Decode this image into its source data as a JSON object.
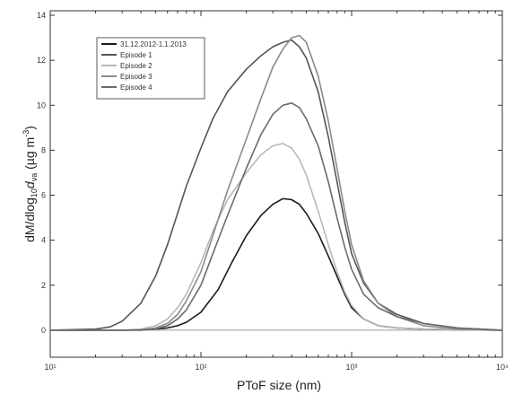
{
  "chart_data": {
    "type": "line",
    "title": "",
    "xlabel": "PToF size (nm)",
    "ylabel_main": "dM/dlog",
    "ylabel_sub1": "10",
    "ylabel_mid": "d",
    "ylabel_sub2": "va",
    "ylabel_unit": " (µg m",
    "ylabel_sup": "-3",
    "ylabel_close": ")",
    "xscale": "log",
    "xlim": [
      10,
      10000
    ],
    "ylim": [
      -1.2,
      14.2
    ],
    "yticks": [
      "0",
      "2",
      "4",
      "6",
      "8",
      "10",
      "12",
      "14"
    ],
    "xticks_major": [
      "10¹",
      "10²",
      "10³",
      "10⁴"
    ],
    "legend_position": "top-left",
    "grid": false,
    "series": [
      {
        "name": "31.12.2012-1.1.2013",
        "color": "#1a1a1a",
        "x": [
          10,
          20,
          30,
          40,
          50,
          60,
          70,
          80,
          100,
          130,
          160,
          200,
          250,
          300,
          350,
          400,
          450,
          500,
          600,
          700,
          800,
          900,
          1000,
          1200,
          1500,
          2000,
          3000,
          5000,
          10000
        ],
        "y": [
          0,
          0,
          0,
          0.02,
          0.05,
          0.1,
          0.2,
          0.35,
          0.8,
          1.8,
          3.0,
          4.2,
          5.1,
          5.6,
          5.85,
          5.8,
          5.6,
          5.2,
          4.3,
          3.3,
          2.4,
          1.6,
          1.0,
          0.5,
          0.2,
          0.1,
          0.05,
          0.02,
          0
        ]
      },
      {
        "name": "Episode 1",
        "color": "#555555",
        "x": [
          10,
          20,
          25,
          30,
          40,
          50,
          60,
          70,
          80,
          100,
          120,
          150,
          200,
          250,
          300,
          350,
          400,
          450,
          500,
          600,
          700,
          800,
          900,
          1000,
          1200,
          1500,
          2000,
          3000,
          5000,
          10000
        ],
        "y": [
          0,
          0.05,
          0.15,
          0.4,
          1.2,
          2.4,
          3.8,
          5.2,
          6.4,
          8.1,
          9.4,
          10.6,
          11.6,
          12.2,
          12.6,
          12.8,
          12.9,
          12.6,
          12.1,
          10.6,
          8.6,
          6.6,
          4.8,
          3.4,
          2.1,
          1.2,
          0.7,
          0.3,
          0.1,
          0
        ]
      },
      {
        "name": "Episode 2",
        "color": "#b8b8b8",
        "x": [
          10,
          30,
          40,
          50,
          60,
          70,
          80,
          100,
          120,
          150,
          200,
          250,
          300,
          350,
          400,
          450,
          500,
          600,
          700,
          800,
          900,
          1000,
          1200,
          1500,
          2000,
          3000,
          5000,
          10000
        ],
        "y": [
          0,
          0,
          0.05,
          0.2,
          0.5,
          1.0,
          1.6,
          3.0,
          4.4,
          5.8,
          7.0,
          7.8,
          8.2,
          8.3,
          8.1,
          7.6,
          6.9,
          5.3,
          3.8,
          2.6,
          1.7,
          1.1,
          0.5,
          0.2,
          0.1,
          0.05,
          0.02,
          0
        ]
      },
      {
        "name": "Episode 3",
        "color": "#8a8a8a",
        "x": [
          10,
          30,
          40,
          50,
          60,
          70,
          80,
          100,
          120,
          150,
          200,
          250,
          300,
          350,
          400,
          450,
          500,
          600,
          700,
          800,
          900,
          1000,
          1200,
          1500,
          2000,
          3000,
          5000,
          10000
        ],
        "y": [
          0,
          0,
          0.02,
          0.1,
          0.3,
          0.7,
          1.3,
          2.6,
          4.2,
          6.2,
          8.5,
          10.3,
          11.7,
          12.5,
          13.0,
          13.1,
          12.8,
          11.3,
          9.3,
          7.2,
          5.3,
          3.8,
          2.2,
          1.2,
          0.6,
          0.2,
          0.05,
          0
        ]
      },
      {
        "name": "Episode 4",
        "color": "#6b6b6b",
        "x": [
          10,
          40,
          50,
          60,
          70,
          80,
          100,
          120,
          150,
          200,
          250,
          300,
          350,
          400,
          450,
          500,
          600,
          700,
          800,
          900,
          1000,
          1200,
          1500,
          2000,
          3000,
          5000,
          10000
        ],
        "y": [
          0,
          0,
          0.05,
          0.2,
          0.5,
          0.9,
          2.0,
          3.4,
          5.1,
          7.2,
          8.7,
          9.6,
          10.0,
          10.1,
          9.9,
          9.4,
          8.2,
          6.6,
          5.0,
          3.7,
          2.7,
          1.6,
          1.0,
          0.6,
          0.3,
          0.1,
          0
        ]
      }
    ]
  },
  "colors": {
    "axis": "#333333",
    "background": "#ffffff"
  }
}
